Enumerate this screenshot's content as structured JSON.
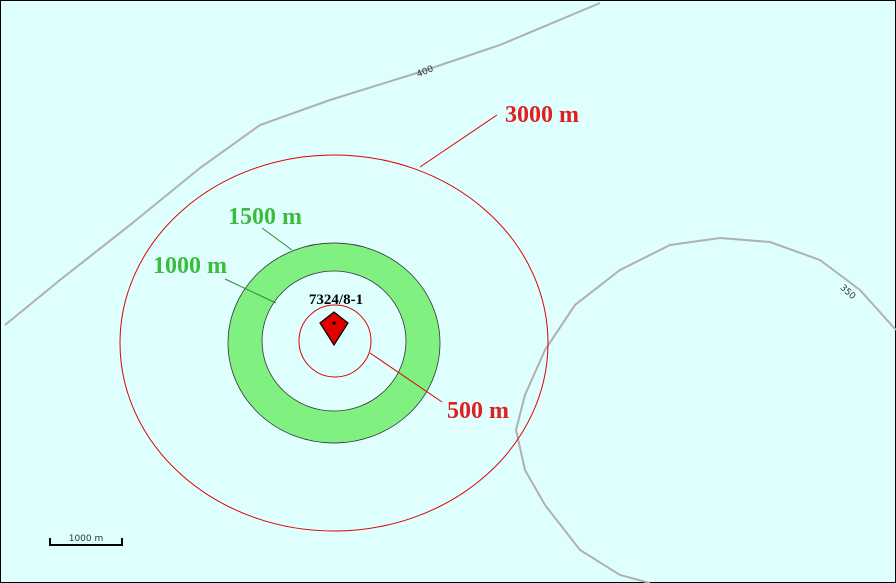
{
  "map": {
    "well": "7324/8-1",
    "rings": [
      {
        "label": "500 m"
      },
      {
        "label": "1000 m"
      },
      {
        "label": "1500 m"
      },
      {
        "label": "3000 m"
      }
    ],
    "contours": [
      {
        "label": "400"
      },
      {
        "label": "350"
      }
    ],
    "scale_bar": "1000 m"
  }
}
